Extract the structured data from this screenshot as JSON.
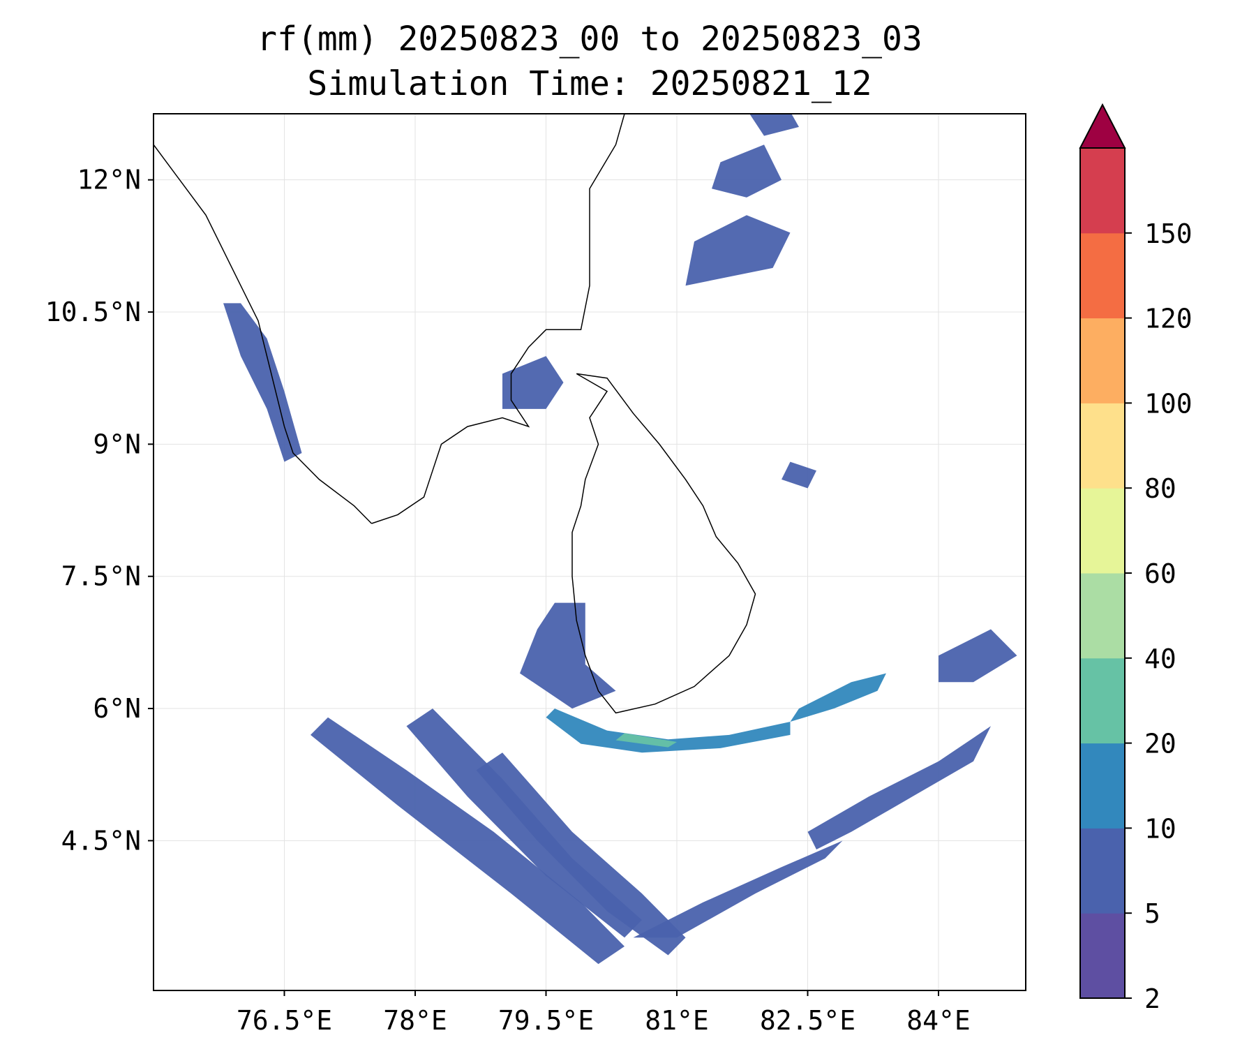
{
  "title": {
    "line1": "rf(mm) 20250823_00 to 20250823_03",
    "line2": "Simulation Time: 20250821_12"
  },
  "map": {
    "lon_range": [
      75.0,
      85.0
    ],
    "lat_range": [
      2.8,
      12.75
    ],
    "lon_ticks": [
      {
        "value": 76.5,
        "label": "76.5°E"
      },
      {
        "value": 78.0,
        "label": "78°E"
      },
      {
        "value": 79.5,
        "label": "79.5°E"
      },
      {
        "value": 81.0,
        "label": "81°E"
      },
      {
        "value": 82.5,
        "label": "82.5°E"
      },
      {
        "value": 84.0,
        "label": "84°E"
      }
    ],
    "lat_ticks": [
      {
        "value": 12.0,
        "label": "12°N"
      },
      {
        "value": 10.5,
        "label": "10.5°N"
      },
      {
        "value": 9.0,
        "label": "9°N"
      },
      {
        "value": 7.5,
        "label": "7.5°N"
      },
      {
        "value": 6.0,
        "label": "6°N"
      },
      {
        "value": 4.5,
        "label": "4.5°N"
      }
    ],
    "grid": true,
    "coastlines": [
      {
        "name": "india-west-coast",
        "points": [
          [
            75.0,
            12.4
          ],
          [
            75.3,
            12.0
          ],
          [
            75.6,
            11.6
          ],
          [
            75.8,
            11.2
          ],
          [
            76.0,
            10.8
          ],
          [
            76.2,
            10.4
          ],
          [
            76.3,
            10.0
          ],
          [
            76.4,
            9.6
          ],
          [
            76.5,
            9.2
          ],
          [
            76.6,
            8.9
          ],
          [
            76.9,
            8.6
          ],
          [
            77.3,
            8.3
          ],
          [
            77.5,
            8.1
          ]
        ]
      },
      {
        "name": "india-south-east-coast",
        "points": [
          [
            77.5,
            8.1
          ],
          [
            77.8,
            8.2
          ],
          [
            78.1,
            8.4
          ],
          [
            78.2,
            8.7
          ],
          [
            78.3,
            9.0
          ],
          [
            78.6,
            9.2
          ],
          [
            79.0,
            9.3
          ],
          [
            79.3,
            9.2
          ],
          [
            79.1,
            9.5
          ],
          [
            79.1,
            9.8
          ],
          [
            79.3,
            10.1
          ],
          [
            79.5,
            10.3
          ],
          [
            79.9,
            10.3
          ],
          [
            80.0,
            10.8
          ],
          [
            80.0,
            11.5
          ],
          [
            80.0,
            11.9
          ],
          [
            80.3,
            12.4
          ],
          [
            80.4,
            12.75
          ]
        ]
      },
      {
        "name": "sri-lanka-coast",
        "points": [
          [
            79.85,
            9.8
          ],
          [
            80.2,
            9.75
          ],
          [
            80.5,
            9.35
          ],
          [
            80.8,
            9.0
          ],
          [
            81.1,
            8.6
          ],
          [
            81.3,
            8.3
          ],
          [
            81.45,
            7.95
          ],
          [
            81.7,
            7.65
          ],
          [
            81.9,
            7.3
          ],
          [
            81.8,
            6.95
          ],
          [
            81.6,
            6.6
          ],
          [
            81.2,
            6.25
          ],
          [
            80.75,
            6.05
          ],
          [
            80.3,
            5.95
          ],
          [
            80.1,
            6.2
          ],
          [
            79.95,
            6.6
          ],
          [
            79.85,
            7.0
          ],
          [
            79.8,
            7.5
          ],
          [
            79.8,
            8.0
          ],
          [
            79.9,
            8.3
          ],
          [
            79.95,
            8.6
          ],
          [
            80.1,
            9.0
          ],
          [
            80.0,
            9.3
          ],
          [
            80.2,
            9.6
          ],
          [
            79.85,
            9.8
          ]
        ]
      }
    ],
    "rain_regions": [
      {
        "name": "sw-sea-band-1",
        "level": 5,
        "points": [
          [
            77.0,
            5.9
          ],
          [
            77.9,
            5.3
          ],
          [
            78.9,
            4.6
          ],
          [
            79.9,
            3.8
          ],
          [
            80.4,
            3.3
          ],
          [
            80.1,
            3.1
          ],
          [
            79.1,
            3.9
          ],
          [
            77.8,
            4.9
          ],
          [
            76.8,
            5.7
          ]
        ]
      },
      {
        "name": "sw-sea-band-2",
        "level": 5,
        "points": [
          [
            78.2,
            6.0
          ],
          [
            79.0,
            5.2
          ],
          [
            79.8,
            4.3
          ],
          [
            80.6,
            3.6
          ],
          [
            80.4,
            3.4
          ],
          [
            79.5,
            4.1
          ],
          [
            78.6,
            5.0
          ],
          [
            77.9,
            5.8
          ]
        ]
      },
      {
        "name": "sw-sea-band-3",
        "level": 5,
        "points": [
          [
            79.0,
            5.5
          ],
          [
            79.8,
            4.6
          ],
          [
            80.6,
            3.9
          ],
          [
            81.1,
            3.4
          ],
          [
            80.9,
            3.2
          ],
          [
            80.2,
            3.7
          ],
          [
            79.4,
            4.5
          ],
          [
            78.7,
            5.3
          ]
        ]
      },
      {
        "name": "south-sl-rainband",
        "level": 10,
        "points": [
          [
            79.6,
            6.0
          ],
          [
            80.2,
            5.75
          ],
          [
            80.9,
            5.65
          ],
          [
            81.6,
            5.7
          ],
          [
            82.3,
            5.85
          ],
          [
            82.3,
            5.7
          ],
          [
            81.5,
            5.55
          ],
          [
            80.6,
            5.5
          ],
          [
            79.9,
            5.6
          ],
          [
            79.5,
            5.9
          ]
        ]
      },
      {
        "name": "south-sl-rainband-core",
        "level": 20,
        "points": [
          [
            80.4,
            5.72
          ],
          [
            81.0,
            5.62
          ],
          [
            80.9,
            5.56
          ],
          [
            80.3,
            5.64
          ]
        ]
      },
      {
        "name": "east-rainband",
        "level": 10,
        "points": [
          [
            82.4,
            6.0
          ],
          [
            83.0,
            6.3
          ],
          [
            83.4,
            6.4
          ],
          [
            83.3,
            6.2
          ],
          [
            82.8,
            6.0
          ],
          [
            82.3,
            5.85
          ]
        ]
      },
      {
        "name": "southwest-sl-shore",
        "level": 5,
        "points": [
          [
            79.6,
            7.2
          ],
          [
            79.95,
            7.2
          ],
          [
            79.95,
            6.5
          ],
          [
            80.3,
            6.2
          ],
          [
            79.8,
            6.0
          ],
          [
            79.2,
            6.4
          ],
          [
            79.4,
            6.9
          ]
        ]
      },
      {
        "name": "palk-bay-cluster",
        "level": 5,
        "points": [
          [
            79.0,
            9.8
          ],
          [
            79.5,
            10.0
          ],
          [
            79.7,
            9.7
          ],
          [
            79.5,
            9.4
          ],
          [
            79.0,
            9.4
          ]
        ]
      },
      {
        "name": "north-bay-cluster-1",
        "level": 5,
        "points": [
          [
            81.2,
            11.3
          ],
          [
            81.8,
            11.6
          ],
          [
            82.3,
            11.4
          ],
          [
            82.1,
            11.0
          ],
          [
            81.6,
            10.9
          ],
          [
            81.1,
            10.8
          ]
        ]
      },
      {
        "name": "north-bay-cluster-2",
        "level": 5,
        "points": [
          [
            81.5,
            12.2
          ],
          [
            82.0,
            12.4
          ],
          [
            82.2,
            12.0
          ],
          [
            81.8,
            11.8
          ],
          [
            81.4,
            11.9
          ]
        ]
      },
      {
        "name": "north-bay-cluster-3",
        "level": 5,
        "points": [
          [
            81.8,
            12.8
          ],
          [
            82.2,
            12.95
          ],
          [
            82.4,
            12.6
          ],
          [
            82.0,
            12.5
          ]
        ]
      },
      {
        "name": "kerala-coast",
        "level": 5,
        "points": [
          [
            76.0,
            10.6
          ],
          [
            76.3,
            10.2
          ],
          [
            76.5,
            9.6
          ],
          [
            76.7,
            8.9
          ],
          [
            76.5,
            8.8
          ],
          [
            76.3,
            9.4
          ],
          [
            76.0,
            10.0
          ],
          [
            75.8,
            10.6
          ]
        ]
      },
      {
        "name": "se-sea-cluster",
        "level": 5,
        "points": [
          [
            82.5,
            4.6
          ],
          [
            83.2,
            5.0
          ],
          [
            84.0,
            5.4
          ],
          [
            84.6,
            5.8
          ],
          [
            84.4,
            5.4
          ],
          [
            83.7,
            5.0
          ],
          [
            83.0,
            4.6
          ],
          [
            82.6,
            4.4
          ]
        ]
      },
      {
        "name": "south-sea-tail",
        "level": 5,
        "points": [
          [
            80.5,
            3.4
          ],
          [
            81.3,
            3.8
          ],
          [
            82.2,
            4.2
          ],
          [
            82.9,
            4.5
          ],
          [
            82.7,
            4.3
          ],
          [
            81.9,
            3.9
          ],
          [
            81.0,
            3.4
          ]
        ]
      },
      {
        "name": "ne-sl-sea",
        "level": 5,
        "points": [
          [
            82.3,
            8.8
          ],
          [
            82.6,
            8.7
          ],
          [
            82.5,
            8.5
          ],
          [
            82.2,
            8.6
          ]
        ]
      },
      {
        "name": "far-east-cluster",
        "level": 5,
        "points": [
          [
            84.0,
            6.6
          ],
          [
            84.6,
            6.9
          ],
          [
            84.9,
            6.6
          ],
          [
            84.4,
            6.3
          ],
          [
            84.0,
            6.3
          ]
        ]
      }
    ]
  },
  "colorbar": {
    "ticks": [
      "2",
      "5",
      "10",
      "20",
      "40",
      "60",
      "80",
      "100",
      "120",
      "150"
    ],
    "colors": [
      "#5e4fa2",
      "#4a62ad",
      "#3288bd",
      "#66c2a5",
      "#abdda4",
      "#e6f598",
      "#fee08b",
      "#fdae61",
      "#f46d43",
      "#d53e4f"
    ],
    "extend_color": "#9e0142"
  }
}
